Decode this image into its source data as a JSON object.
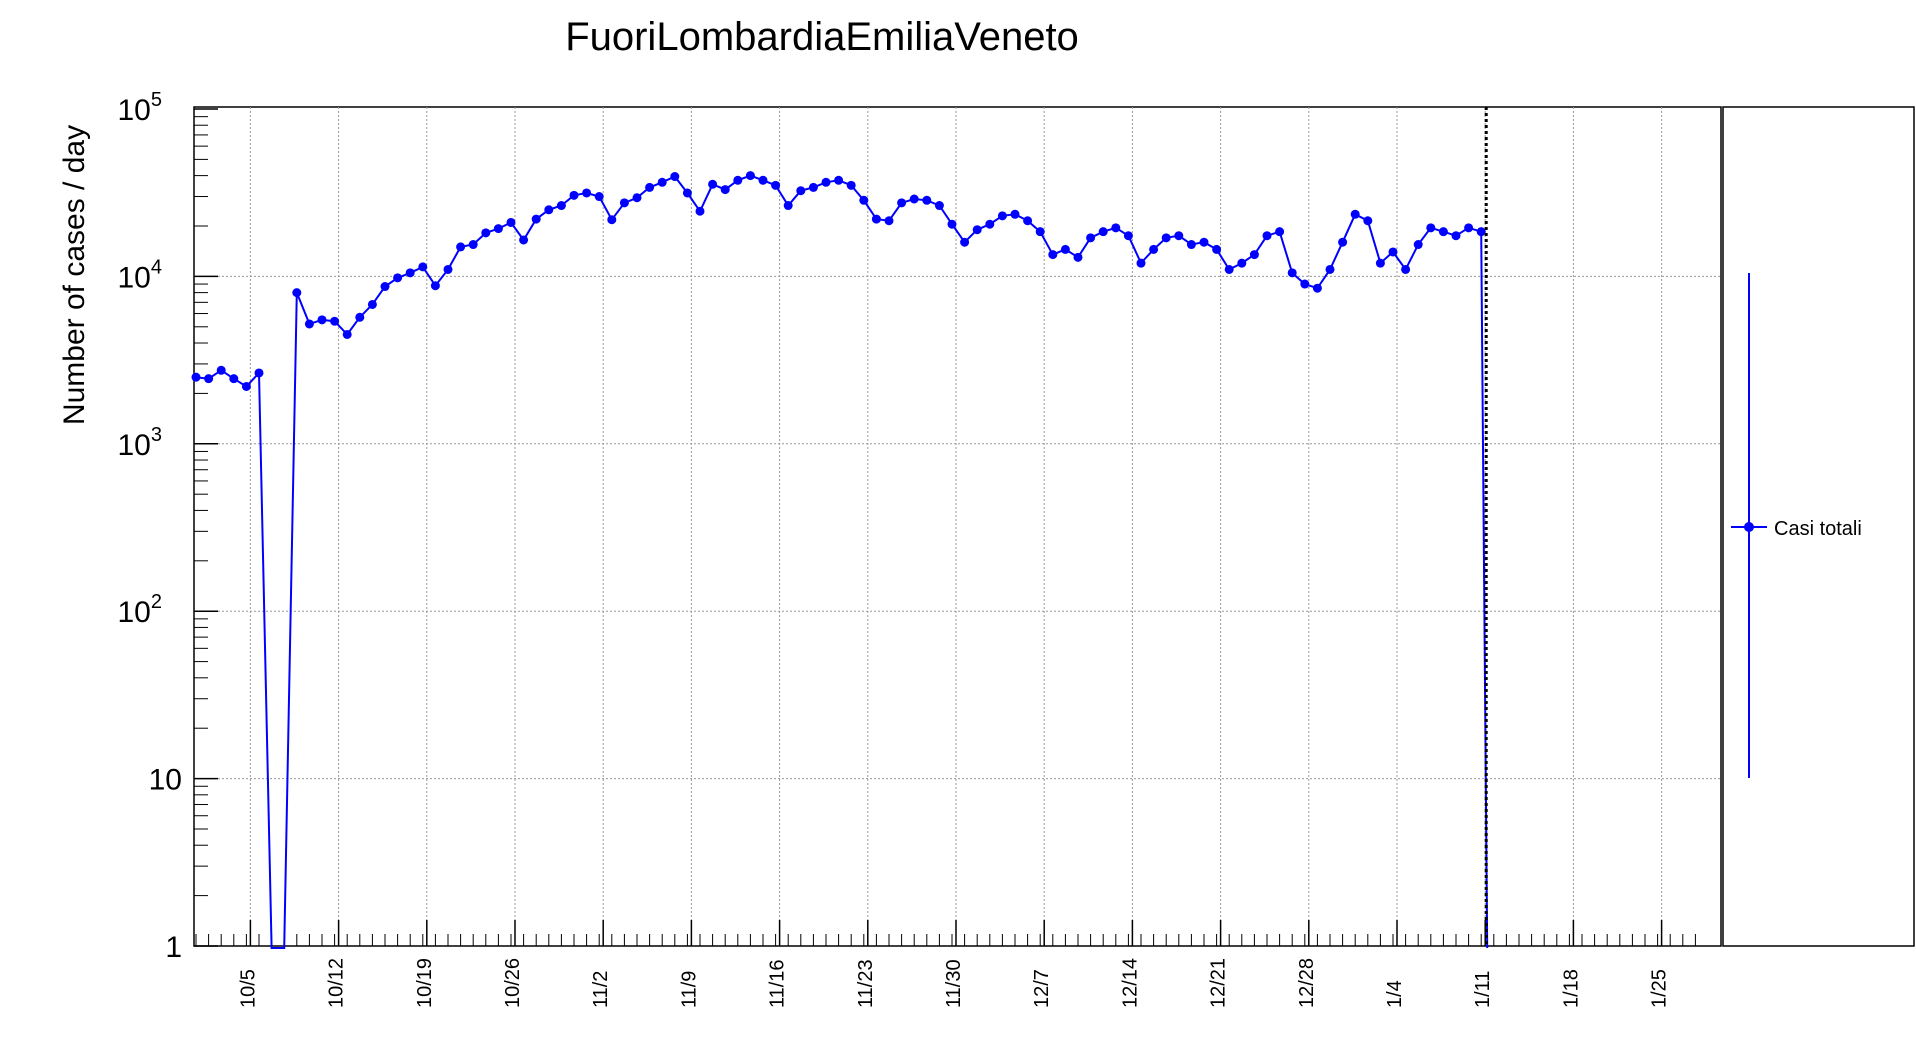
{
  "chart_data": {
    "type": "line",
    "title": "FuoriLombardiaEmiliaVeneto",
    "xlabel": "",
    "ylabel": "Number of cases / day",
    "yscale": "log",
    "ylim": [
      1,
      100000
    ],
    "y_ticks": [
      {
        "base": "10",
        "sup": "5",
        "value": 100000
      },
      {
        "base": "10",
        "sup": "4",
        "value": 10000
      },
      {
        "base": "10",
        "sup": "3",
        "value": 1000
      },
      {
        "base": "10",
        "sup": "2",
        "value": 100
      },
      {
        "base": "10",
        "sup": "",
        "value": 10
      },
      {
        "base": "1",
        "sup": "",
        "value": 1
      }
    ],
    "x_tick_labels": [
      "10/5",
      "10/12",
      "10/19",
      "10/26",
      "11/2",
      "11/9",
      "11/16",
      "11/23",
      "11/30",
      "12/7",
      "12/14",
      "12/21",
      "12/28",
      "1/4",
      "1/11",
      "1/18",
      "1/25"
    ],
    "grid": true,
    "legend_position": "right",
    "marker_line": "1/11",
    "color": "#0000ff",
    "series": [
      {
        "name": "Casi totali",
        "dates": [
          "10/1",
          "10/2",
          "10/3",
          "10/4",
          "10/5",
          "10/6",
          "10/7",
          "10/8",
          "10/9",
          "10/10",
          "10/11",
          "10/12",
          "10/13",
          "10/14",
          "10/15",
          "10/16",
          "10/17",
          "10/18",
          "10/19",
          "10/20",
          "10/21",
          "10/22",
          "10/23",
          "10/24",
          "10/25",
          "10/26",
          "10/27",
          "10/28",
          "10/29",
          "10/30",
          "10/31",
          "11/1",
          "11/2",
          "11/3",
          "11/4",
          "11/5",
          "11/6",
          "11/7",
          "11/8",
          "11/9",
          "11/10",
          "11/11",
          "11/12",
          "11/13",
          "11/14",
          "11/15",
          "11/16",
          "11/17",
          "11/18",
          "11/19",
          "11/20",
          "11/21",
          "11/22",
          "11/23",
          "11/24",
          "11/25",
          "11/26",
          "11/27",
          "11/28",
          "11/29",
          "11/30",
          "12/1",
          "12/2",
          "12/3",
          "12/4",
          "12/5",
          "12/6",
          "12/7",
          "12/8",
          "12/9",
          "12/10",
          "12/11",
          "12/12",
          "12/13",
          "12/14",
          "12/15",
          "12/16",
          "12/17",
          "12/18",
          "12/19",
          "12/20",
          "12/21",
          "12/22",
          "12/23",
          "12/24",
          "12/25",
          "12/26",
          "12/27",
          "12/28",
          "12/29",
          "12/30",
          "12/31",
          "1/1",
          "1/2",
          "1/3",
          "1/4",
          "1/5",
          "1/6",
          "1/7",
          "1/8",
          "1/9",
          "1/10",
          "1/11"
        ],
        "values": [
          2500,
          2450,
          2750,
          2450,
          2200,
          2650,
          null,
          null,
          8000,
          5200,
          5500,
          5400,
          4500,
          5700,
          6800,
          8700,
          9800,
          10500,
          11400,
          8800,
          11000,
          15000,
          15500,
          18200,
          19300,
          21000,
          16500,
          22000,
          25000,
          26500,
          30500,
          31500,
          30000,
          21800,
          27500,
          29500,
          34000,
          36500,
          39500,
          31500,
          24500,
          35500,
          33000,
          37500,
          40000,
          37500,
          35000,
          26500,
          32500,
          34000,
          36500,
          37500,
          35000,
          28500,
          22000,
          21500,
          27500,
          29000,
          28500,
          26500,
          20500,
          16000,
          19000,
          20500,
          23000,
          23500,
          21500,
          18500,
          13500,
          14500,
          13000,
          17000,
          18500,
          19500,
          17500,
          12000,
          14500,
          17000,
          17500,
          15500,
          16000,
          14500,
          11000,
          12000,
          13500,
          17500,
          18500,
          10500,
          9000,
          8500,
          11000,
          16000,
          23500,
          21500,
          12000,
          14000,
          11000,
          15500,
          19500,
          18500,
          17500,
          19500,
          18500
        ]
      }
    ]
  }
}
